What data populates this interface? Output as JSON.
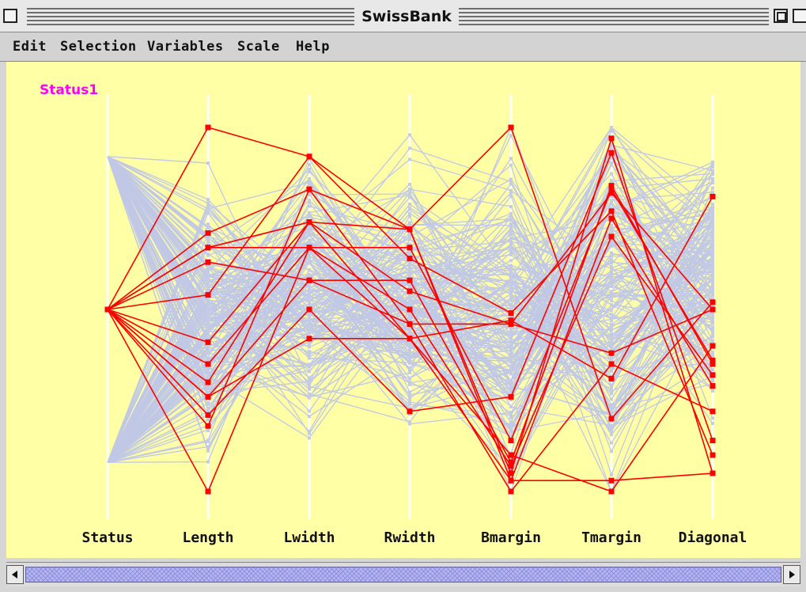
{
  "window": {
    "title": "SwissBank"
  },
  "menu": {
    "items": [
      "Edit",
      "Selection",
      "Variables",
      "Scale",
      "Help"
    ]
  },
  "plot": {
    "selection_label": "Status1",
    "background_color": "#ffffa6",
    "highlight_color": "#ff0000",
    "background_line_color": "#c0c8e6",
    "axis_color": "#ffffff",
    "label_color": "#ff00ff"
  },
  "chart_data": {
    "type": "parallel_coordinates",
    "axes": [
      "Status",
      "Length",
      "Lwidth",
      "Rwidth",
      "Bmargin",
      "Tmargin",
      "Diagonal"
    ],
    "scale": "each axis scaled to its own min (0, bottom) and max (1, top)",
    "highlighted_group": "Status1",
    "highlighted": [
      [
        0.5,
        1.0,
        0.92,
        0.72,
        0.03,
        0.03,
        0.05
      ],
      [
        0.5,
        0.71,
        0.83,
        0.72,
        1.0,
        0.2,
        0.52
      ],
      [
        0.5,
        0.67,
        0.74,
        0.72,
        0.05,
        0.97,
        0.05
      ],
      [
        0.5,
        0.67,
        0.67,
        0.67,
        0.14,
        0.83,
        0.36
      ],
      [
        0.5,
        0.63,
        0.58,
        0.58,
        0.08,
        0.84,
        0.35
      ],
      [
        0.5,
        0.54,
        0.92,
        0.64,
        0.49,
        0.77,
        0.1
      ],
      [
        0.5,
        0.41,
        0.74,
        0.55,
        0.46,
        0.82,
        0.5
      ],
      [
        0.5,
        0.35,
        0.67,
        0.5,
        0.07,
        0.7,
        0.32
      ],
      [
        0.5,
        0.3,
        0.74,
        0.42,
        0.03,
        0.75,
        0.29
      ],
      [
        0.5,
        0.26,
        0.58,
        0.46,
        0.46,
        0.38,
        0.5
      ],
      [
        0.5,
        0.21,
        0.5,
        0.22,
        0.26,
        0.93,
        0.14
      ],
      [
        0.5,
        0.18,
        0.83,
        0.46,
        0.0,
        0.35,
        0.22
      ],
      [
        0.5,
        0.0,
        0.67,
        0.42,
        0.1,
        0.0,
        0.4
      ],
      [
        0.5,
        0.26,
        0.42,
        0.42,
        0.47,
        0.31,
        0.81
      ]
    ],
    "background_series_count": 186
  }
}
